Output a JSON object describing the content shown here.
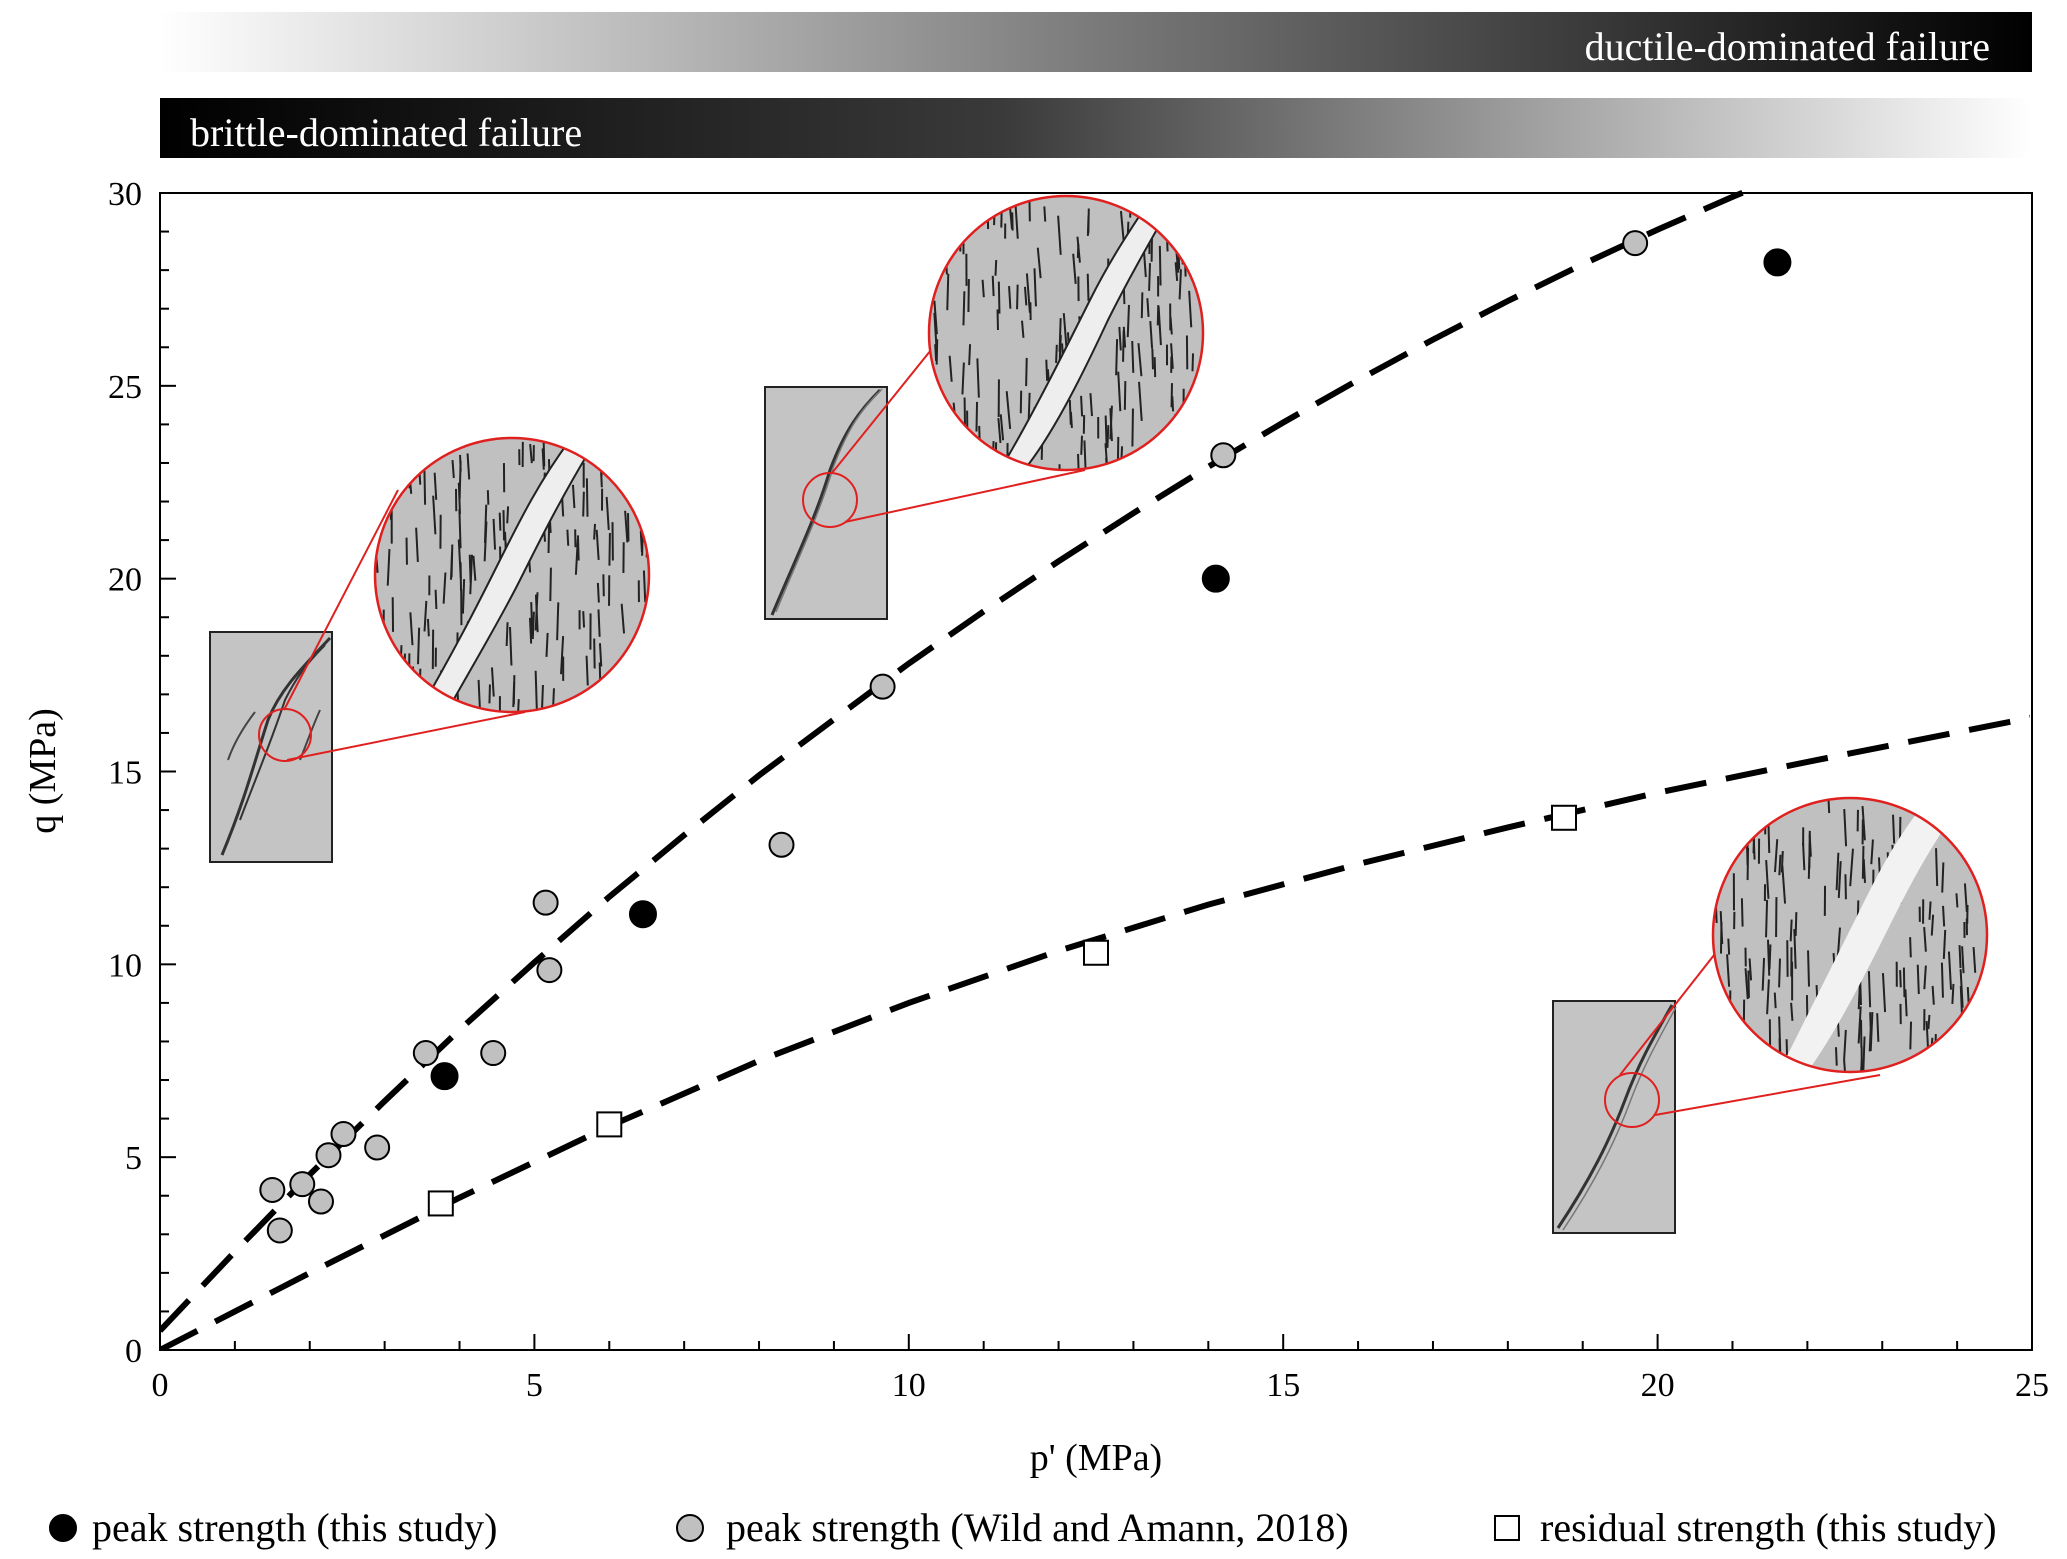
{
  "chart_data": {
    "type": "scatter",
    "title": "",
    "xlabel": "p' (MPa)",
    "ylabel": "q (MPa)",
    "xlim": [
      0,
      25
    ],
    "ylim": [
      0,
      30
    ],
    "xticks": [
      0,
      5,
      10,
      15,
      20,
      25
    ],
    "yticks": [
      0,
      5,
      10,
      15,
      20,
      25,
      30
    ],
    "grid": false,
    "legend_position": "bottom",
    "bands": {
      "ductile": "ductile-dominated failure",
      "brittle": "brittle-dominated failure"
    },
    "series": [
      {
        "name": "peak strength (this study)",
        "marker": "circle",
        "color": "#000000",
        "x": [
          3.8,
          6.45,
          14.1,
          21.6
        ],
        "y": [
          7.1,
          11.3,
          20.0,
          28.2
        ]
      },
      {
        "name": "peak strength (Wild and Amann, 2018)",
        "marker": "circle",
        "color": "#c0c0c0",
        "x": [
          1.5,
          1.6,
          1.9,
          2.15,
          2.25,
          2.45,
          2.9,
          3.55,
          4.45,
          5.15,
          5.2,
          8.3,
          9.65,
          14.2,
          19.7
        ],
        "y": [
          4.15,
          3.1,
          4.3,
          3.85,
          5.05,
          5.6,
          5.25,
          7.7,
          7.7,
          11.6,
          9.85,
          13.1,
          17.2,
          23.2,
          28.7
        ]
      },
      {
        "name": "residual strength (this study)",
        "marker": "square",
        "color": "#ffffff",
        "x": [
          3.75,
          6.0,
          12.5,
          18.75
        ],
        "y": [
          3.8,
          5.85,
          10.3,
          13.8
        ]
      }
    ],
    "fit_lines": [
      {
        "style": "dashed",
        "x": [
          0,
          1,
          2,
          3,
          4,
          5,
          6,
          7,
          8,
          9,
          10,
          11,
          12,
          13,
          14,
          15,
          16,
          17,
          18,
          19,
          20,
          21,
          22,
          23
        ],
        "y": [
          0.5,
          2.55,
          4.55,
          6.45,
          8.3,
          10.05,
          11.75,
          13.35,
          14.9,
          16.35,
          17.8,
          19.15,
          20.45,
          21.7,
          22.9,
          24.05,
          25.15,
          26.2,
          27.2,
          28.15,
          29.05,
          29.9,
          30.7,
          31.45
        ]
      },
      {
        "style": "dashed",
        "x": [
          0,
          2,
          4,
          6,
          8,
          10,
          12,
          14,
          16,
          18,
          20,
          22,
          25
        ],
        "y": [
          0,
          2.0,
          3.95,
          5.8,
          7.5,
          9.0,
          10.35,
          11.55,
          12.6,
          13.55,
          14.45,
          15.25,
          16.4
        ]
      }
    ]
  }
}
